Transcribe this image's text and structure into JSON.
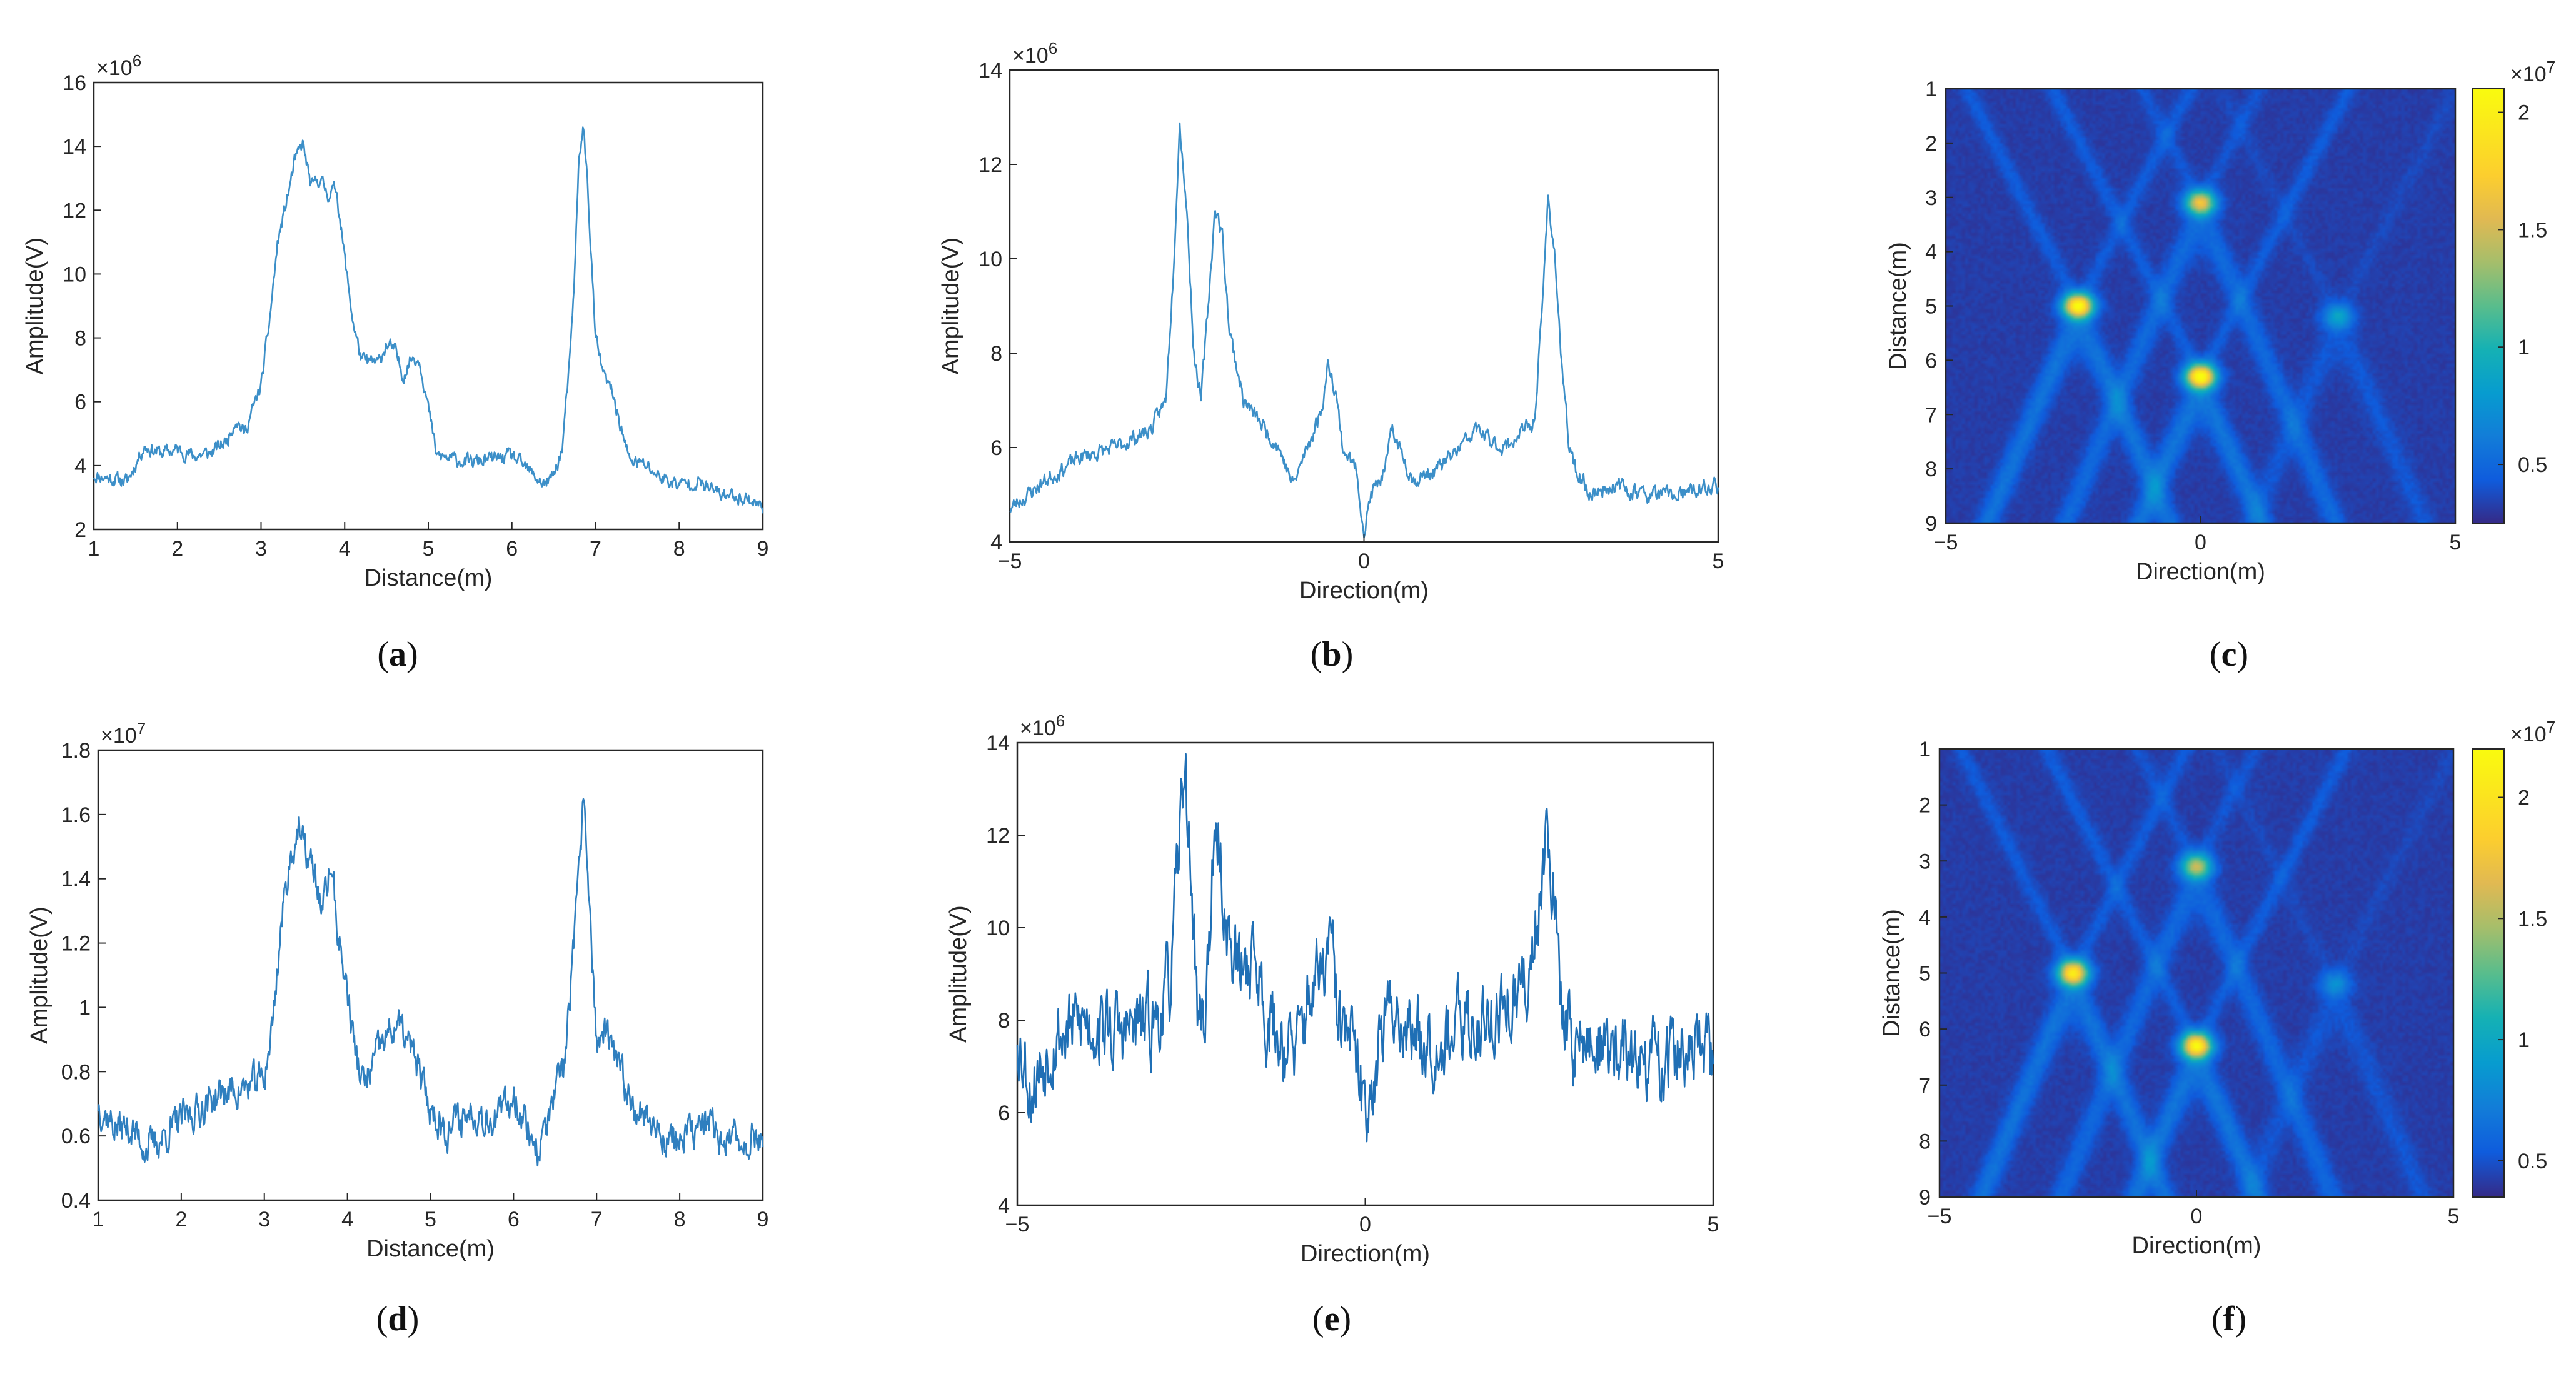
{
  "figure": {
    "panel_labels": [
      "(a)",
      "(b)",
      "(c)",
      "(d)",
      "(e)",
      "(f)"
    ]
  },
  "chart_data": [
    {
      "id": "a",
      "type": "line",
      "xlabel": "Distance(m)",
      "ylabel": "Amplitude(V)",
      "xlim": [
        1,
        9
      ],
      "ylim": [
        2,
        16
      ],
      "xticks": [
        1,
        2,
        3,
        4,
        5,
        6,
        7,
        8,
        9
      ],
      "yticks": [
        2,
        4,
        6,
        8,
        10,
        12,
        14,
        16
      ],
      "ytick_labels": [
        "2",
        "4",
        "6",
        "8",
        "10",
        "12",
        "14",
        "16"
      ],
      "y_exponent": "×10",
      "y_exponent_power": "6",
      "line_color": "#3c8fc8",
      "noise": 0.18,
      "seed": 11,
      "x": [
        1.0,
        1.2,
        1.4,
        1.6,
        1.8,
        2.0,
        2.2,
        2.4,
        2.6,
        2.7,
        2.8,
        3.0,
        3.1,
        3.2,
        3.3,
        3.4,
        3.5,
        3.6,
        3.7,
        3.8,
        3.9,
        4.0,
        4.1,
        4.2,
        4.4,
        4.5,
        4.6,
        4.7,
        4.8,
        4.9,
        5.0,
        5.1,
        5.5,
        6.0,
        6.3,
        6.4,
        6.5,
        6.6,
        6.7,
        6.75,
        6.8,
        6.85,
        6.9,
        7.0,
        7.1,
        7.2,
        7.4,
        7.6,
        7.8,
        8.0,
        8.2,
        8.5,
        8.8,
        9.0
      ],
      "y": [
        3.7,
        3.6,
        3.5,
        4.6,
        4.4,
        4.5,
        4.3,
        4.4,
        4.8,
        5.5,
        5.0,
        6.5,
        8.5,
        11.0,
        12.2,
        13.5,
        14.1,
        12.7,
        13.0,
        12.5,
        12.7,
        10.5,
        8.5,
        7.3,
        7.2,
        7.8,
        7.6,
        6.8,
        7.4,
        7.3,
        5.8,
        4.3,
        4.1,
        4.3,
        3.6,
        3.4,
        3.7,
        4.5,
        7.5,
        10.0,
        13.5,
        14.7,
        13.0,
        8.0,
        6.8,
        6.3,
        4.2,
        4.0,
        3.6,
        3.4,
        3.5,
        3.1,
        3.0,
        2.7
      ]
    },
    {
      "id": "b",
      "type": "line",
      "xlabel": "Direction(m)",
      "ylabel": "Amplitude(V)",
      "xlim": [
        -5,
        5
      ],
      "ylim": [
        4,
        14
      ],
      "xticks": [
        -5,
        0,
        5
      ],
      "yticks": [
        4,
        6,
        8,
        10,
        12,
        14
      ],
      "ytick_labels": [
        "4",
        "6",
        "8",
        "10",
        "12",
        "14"
      ],
      "y_exponent": "×10",
      "y_exponent_power": "6",
      "line_color": "#3c8fc8",
      "noise": 0.14,
      "seed": 23,
      "x": [
        -5.0,
        -4.5,
        -4.0,
        -3.5,
        -3.0,
        -2.8,
        -2.7,
        -2.6,
        -2.5,
        -2.4,
        -2.3,
        -2.2,
        -2.1,
        -2.0,
        -1.9,
        -1.7,
        -1.5,
        -1.2,
        -1.0,
        -0.8,
        -0.6,
        -0.5,
        -0.4,
        -0.3,
        -0.1,
        0.0,
        0.1,
        0.3,
        0.4,
        0.5,
        0.7,
        1.0,
        1.3,
        1.6,
        1.8,
        2.0,
        2.2,
        2.4,
        2.5,
        2.6,
        2.7,
        2.8,
        2.9,
        3.0,
        3.2,
        3.5,
        4.0,
        4.5,
        5.0
      ],
      "y": [
        4.7,
        5.3,
        5.8,
        6.0,
        6.4,
        7.0,
        9.5,
        12.9,
        11.0,
        8.0,
        7.0,
        9.0,
        11.1,
        10.5,
        8.5,
        7.0,
        6.6,
        6.0,
        5.2,
        6.0,
        6.8,
        7.8,
        7.2,
        6.0,
        5.5,
        4.2,
        5.0,
        5.5,
        6.4,
        6.0,
        5.3,
        5.5,
        5.9,
        6.4,
        6.1,
        6.0,
        6.3,
        6.5,
        8.5,
        11.3,
        10.0,
        7.5,
        6.0,
        5.5,
        5.0,
        5.2,
        5.0,
        5.0,
        5.2
      ]
    },
    {
      "id": "c",
      "type": "heatmap",
      "xlabel": "Direction(m)",
      "ylabel": "Distance(m)",
      "xlim": [
        -5,
        5
      ],
      "ylim": [
        1,
        9
      ],
      "xticks": [
        -5,
        0,
        5
      ],
      "yticks": [
        1,
        2,
        3,
        4,
        5,
        6,
        7,
        8,
        9
      ],
      "colorbar_ticks": [
        0.5,
        1,
        1.5,
        2
      ],
      "colorbar_exponent": "×10",
      "colorbar_exponent_power": "7",
      "clim": [
        0.25,
        2.1
      ],
      "background": 0.32,
      "hot_spots": [
        {
          "x": 0.0,
          "y": 3.1,
          "value": 1.6
        },
        {
          "x": -2.4,
          "y": 5.0,
          "value": 2.05
        },
        {
          "x": 0.0,
          "y": 6.3,
          "value": 2.1
        },
        {
          "x": 2.7,
          "y": 5.2,
          "value": 0.85
        }
      ]
    },
    {
      "id": "d",
      "type": "line",
      "xlabel": "Distance(m)",
      "ylabel": "Amplitude(V)",
      "xlim": [
        1,
        9
      ],
      "ylim": [
        0.4,
        1.8
      ],
      "xticks": [
        1,
        2,
        3,
        4,
        5,
        6,
        7,
        8,
        9
      ],
      "yticks": [
        0.4,
        0.6,
        0.8,
        1.0,
        1.2,
        1.4,
        1.6,
        1.8
      ],
      "ytick_labels": [
        "0.4",
        "0.6",
        "0.8",
        "1",
        "1.2",
        "1.4",
        "1.6",
        "1.8"
      ],
      "y_exponent": "×10",
      "y_exponent_power": "7",
      "line_color": "#2f7fbf",
      "noise": 0.045,
      "seed": 37,
      "x": [
        1.0,
        1.2,
        1.4,
        1.6,
        1.8,
        2.0,
        2.2,
        2.4,
        2.6,
        2.8,
        3.0,
        3.1,
        3.2,
        3.3,
        3.4,
        3.5,
        3.6,
        3.7,
        3.8,
        3.9,
        4.0,
        4.1,
        4.2,
        4.4,
        4.6,
        4.8,
        5.0,
        5.2,
        5.5,
        5.8,
        6.0,
        6.3,
        6.5,
        6.6,
        6.7,
        6.8,
        6.85,
        6.9,
        7.0,
        7.1,
        7.2,
        7.4,
        7.6,
        7.8,
        8.0,
        8.3,
        8.6,
        9.0
      ],
      "y": [
        0.7,
        0.63,
        0.62,
        0.56,
        0.6,
        0.65,
        0.68,
        0.72,
        0.74,
        0.75,
        0.78,
        0.95,
        1.25,
        1.45,
        1.55,
        1.48,
        1.42,
        1.3,
        1.45,
        1.2,
        1.05,
        0.85,
        0.75,
        0.88,
        0.95,
        0.85,
        0.68,
        0.62,
        0.68,
        0.65,
        0.73,
        0.55,
        0.72,
        0.8,
        1.1,
        1.45,
        1.67,
        1.4,
        0.88,
        0.92,
        0.85,
        0.72,
        0.66,
        0.6,
        0.58,
        0.64,
        0.58,
        0.6
      ]
    },
    {
      "id": "e",
      "type": "line",
      "xlabel": "Direction(m)",
      "ylabel": "Amplitude(V)",
      "xlim": [
        -5,
        5
      ],
      "ylim": [
        4,
        14
      ],
      "xticks": [
        -5,
        0,
        5
      ],
      "yticks": [
        4,
        6,
        8,
        10,
        12,
        14
      ],
      "ytick_labels": [
        "4",
        "6",
        "8",
        "10",
        "12",
        "14"
      ],
      "y_exponent": "×10",
      "y_exponent_power": "6",
      "line_color": "#1f6fb5",
      "noise": 0.7,
      "seed": 53,
      "x": [
        -5.0,
        -4.8,
        -4.5,
        -4.0,
        -3.5,
        -3.0,
        -2.8,
        -2.7,
        -2.6,
        -2.5,
        -2.4,
        -2.3,
        -2.2,
        -2.1,
        -2.0,
        -1.8,
        -1.6,
        -1.4,
        -1.2,
        -1.0,
        -0.8,
        -0.6,
        -0.5,
        -0.4,
        -0.2,
        0.0,
        0.2,
        0.4,
        0.6,
        1.0,
        1.5,
        2.0,
        2.3,
        2.5,
        2.6,
        2.7,
        2.8,
        3.0,
        3.5,
        4.0,
        4.5,
        5.0
      ],
      "y": [
        7.8,
        6.5,
        7.6,
        8.0,
        7.7,
        8.0,
        8.8,
        11.0,
        13.7,
        11.0,
        8.0,
        8.2,
        11.0,
        11.8,
        10.0,
        9.0,
        9.5,
        8.0,
        7.6,
        7.2,
        8.6,
        9.0,
        9.8,
        8.0,
        7.5,
        6.0,
        7.5,
        8.4,
        7.8,
        7.6,
        7.9,
        8.2,
        8.6,
        10.5,
        12.4,
        11.0,
        8.4,
        7.5,
        7.4,
        7.0,
        7.3,
        7.2
      ]
    },
    {
      "id": "f",
      "type": "heatmap",
      "xlabel": "Direction(m)",
      "ylabel": "Distance(m)",
      "xlim": [
        -5,
        5
      ],
      "ylim": [
        1,
        9
      ],
      "xticks": [
        -5,
        0,
        5
      ],
      "yticks": [
        1,
        2,
        3,
        4,
        5,
        6,
        7,
        8,
        9
      ],
      "colorbar_ticks": [
        0.5,
        1,
        1.5,
        2
      ],
      "colorbar_exponent": "×10",
      "colorbar_exponent_power": "7",
      "clim": [
        0.35,
        2.2
      ],
      "background": 0.42,
      "hot_spots": [
        {
          "x": 0.0,
          "y": 3.1,
          "value": 1.5
        },
        {
          "x": -2.4,
          "y": 5.0,
          "value": 2.0
        },
        {
          "x": 0.0,
          "y": 6.3,
          "value": 2.1
        },
        {
          "x": 2.7,
          "y": 5.2,
          "value": 0.8
        }
      ]
    }
  ]
}
